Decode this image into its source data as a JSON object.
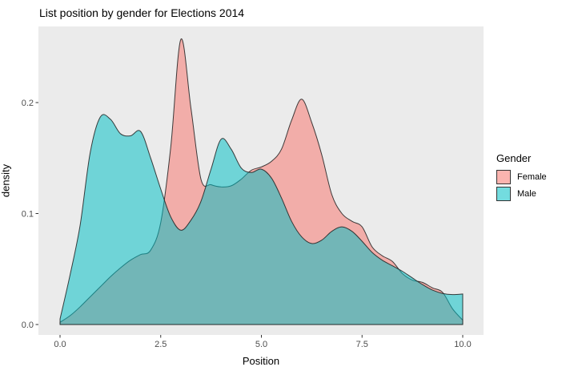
{
  "title": "List position by gender for Elections 2014",
  "x_axis": {
    "label": "Position",
    "ticks": [
      "0.0",
      "2.5",
      "5.0",
      "7.5",
      "10.0"
    ],
    "tick_values": [
      0,
      2.5,
      5,
      7.5,
      10
    ]
  },
  "y_axis": {
    "label": "density",
    "ticks": [
      "0.0",
      "0.1",
      "0.2"
    ],
    "tick_values": [
      0,
      0.1,
      0.2
    ]
  },
  "legend": {
    "title": "Gender",
    "items": [
      {
        "label": "Female",
        "color": "#F8766D"
      },
      {
        "label": "Male",
        "color": "#00BFC4"
      }
    ]
  },
  "colors": {
    "panel_background": "#EBEBEB",
    "curve_outline": "#1f1f1f",
    "tick_mark": "#333333",
    "tick_text": "#4D4D4D",
    "fill_opacity": 0.53
  },
  "chart_data": {
    "type": "area",
    "subtype": "overlapping-density",
    "title": "List position by gender for Elections 2014",
    "xlabel": "Position",
    "ylabel": "density",
    "xlim": [
      0,
      10
    ],
    "ylim": [
      0,
      0.27
    ],
    "grid": false,
    "legend_position": "right",
    "x": [
      0,
      0.25,
      0.5,
      0.75,
      1,
      1.25,
      1.5,
      1.75,
      2,
      2.25,
      2.5,
      2.75,
      3,
      3.25,
      3.5,
      3.75,
      4,
      4.25,
      4.5,
      4.75,
      5,
      5.25,
      5.5,
      5.75,
      6,
      6.25,
      6.5,
      6.75,
      7,
      7.25,
      7.5,
      7.75,
      8,
      8.25,
      8.5,
      8.75,
      9,
      9.25,
      9.5,
      9.75,
      10
    ],
    "series": [
      {
        "name": "Female",
        "color": "#F8766D",
        "values": [
          0.002,
          0.008,
          0.016,
          0.025,
          0.034,
          0.043,
          0.051,
          0.058,
          0.063,
          0.067,
          0.092,
          0.16,
          0.257,
          0.195,
          0.131,
          0.126,
          0.124,
          0.125,
          0.131,
          0.139,
          0.142,
          0.147,
          0.158,
          0.184,
          0.203,
          0.182,
          0.153,
          0.117,
          0.1,
          0.093,
          0.088,
          0.07,
          0.062,
          0.057,
          0.046,
          0.04,
          0.038,
          0.033,
          0.029,
          0.014,
          0.004
        ]
      },
      {
        "name": "Male",
        "color": "#00BFC4",
        "values": [
          0.005,
          0.045,
          0.09,
          0.155,
          0.187,
          0.185,
          0.172,
          0.17,
          0.174,
          0.15,
          0.122,
          0.097,
          0.085,
          0.094,
          0.111,
          0.14,
          0.167,
          0.158,
          0.141,
          0.137,
          0.14,
          0.132,
          0.114,
          0.093,
          0.079,
          0.073,
          0.076,
          0.084,
          0.088,
          0.084,
          0.075,
          0.065,
          0.058,
          0.053,
          0.048,
          0.042,
          0.036,
          0.031,
          0.028,
          0.027,
          0.0275
        ]
      }
    ]
  }
}
